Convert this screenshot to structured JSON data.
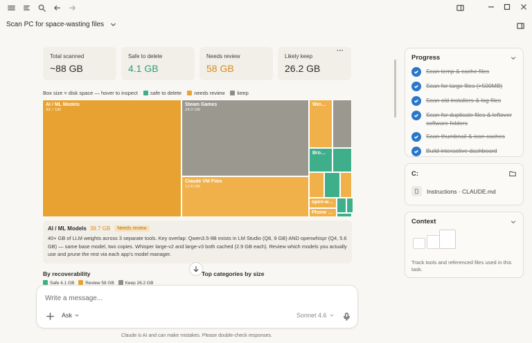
{
  "header": {
    "title": "Scan PC for space-wasting files"
  },
  "cards": [
    {
      "label": "Total scanned",
      "value": "~88 GB",
      "color": "#2b2a27"
    },
    {
      "label": "Safe to delete",
      "value": "4.1 GB",
      "color": "#2f9d74"
    },
    {
      "label": "Needs review",
      "value": "58 GB",
      "color": "#d98a1c"
    },
    {
      "label": "Likely keep",
      "value": "26.2 GB",
      "color": "#2b2a27"
    }
  ],
  "card_menu": "···",
  "legend": {
    "caption": "Box size = disk space — hover to inspect",
    "safe": "safe to delete",
    "review": "needs review",
    "keep": "keep"
  },
  "tiles": {
    "ai_ml": {
      "name": "AI / ML Models",
      "size": "39.7 GB"
    },
    "steam": {
      "name": "Steam Games",
      "size": "24.0 GB"
    },
    "claude_vm": {
      "name": "Claude VM Files",
      "size": "12.6 GB"
    },
    "window": {
      "name": "Window..."
    },
    "brows": {
      "name": "Brows..."
    },
    "openwh": {
      "name": "open-wh..."
    },
    "phone": {
      "name": "Phone L..."
    }
  },
  "detail": {
    "name": "AI / ML Models",
    "size": "39.7 GB",
    "badge": "Needs review",
    "text": "40+ GB of LLM weights across 3 separate tools. Key overlap: Qwen3.5-9B exists in LM Studio (Q8, 9 GB) AND openwhispr (Q4, 5.6 GB) — same base model, two copies. Whisper large-v2 and large-v3 both cached (2.9 GB each). Review which models you actually use and prune the rest via each app's model manager."
  },
  "sections": {
    "recoverability": "By recoverability",
    "top_categories": "Top categories by size",
    "mini_legend": {
      "safe": "Safe 4.1 GB",
      "review": "Review 58 GB",
      "keep": "Keep 26.2 GB"
    }
  },
  "composer": {
    "placeholder": "Write a message...",
    "mode": "Ask",
    "model": "Sonnet 4.6"
  },
  "disclaimer": "Claude is AI and can make mistakes. Please double-check responses.",
  "progress": {
    "title": "Progress",
    "items": [
      "Scan temp & cache files",
      "Scan for large files (>500MB)",
      "Scan old installers & log files",
      "Scan for duplicate files & leftover software folders",
      "Scan thumbnail & icon caches",
      "Build interactive dashboard"
    ]
  },
  "drive": {
    "title": "C:",
    "file": "Instructions · CLAUDE.md"
  },
  "context": {
    "title": "Context",
    "text": "Track tools and referenced files used in this task."
  },
  "colors": {
    "safe": "#3fae8a",
    "review": "#e8a231",
    "keep": "#9b9890",
    "check": "#2a77c9"
  },
  "icons": [
    "menu-icon",
    "sidebar-toggle-icon",
    "search-icon",
    "back-arrow-icon",
    "forward-arrow-icon",
    "minimize-icon",
    "maximize-icon",
    "close-icon",
    "layout-icon",
    "chevron-down-icon",
    "panel-icon",
    "plus-icon",
    "mic-icon",
    "arrow-down-icon",
    "folder-icon",
    "file-icon"
  ]
}
